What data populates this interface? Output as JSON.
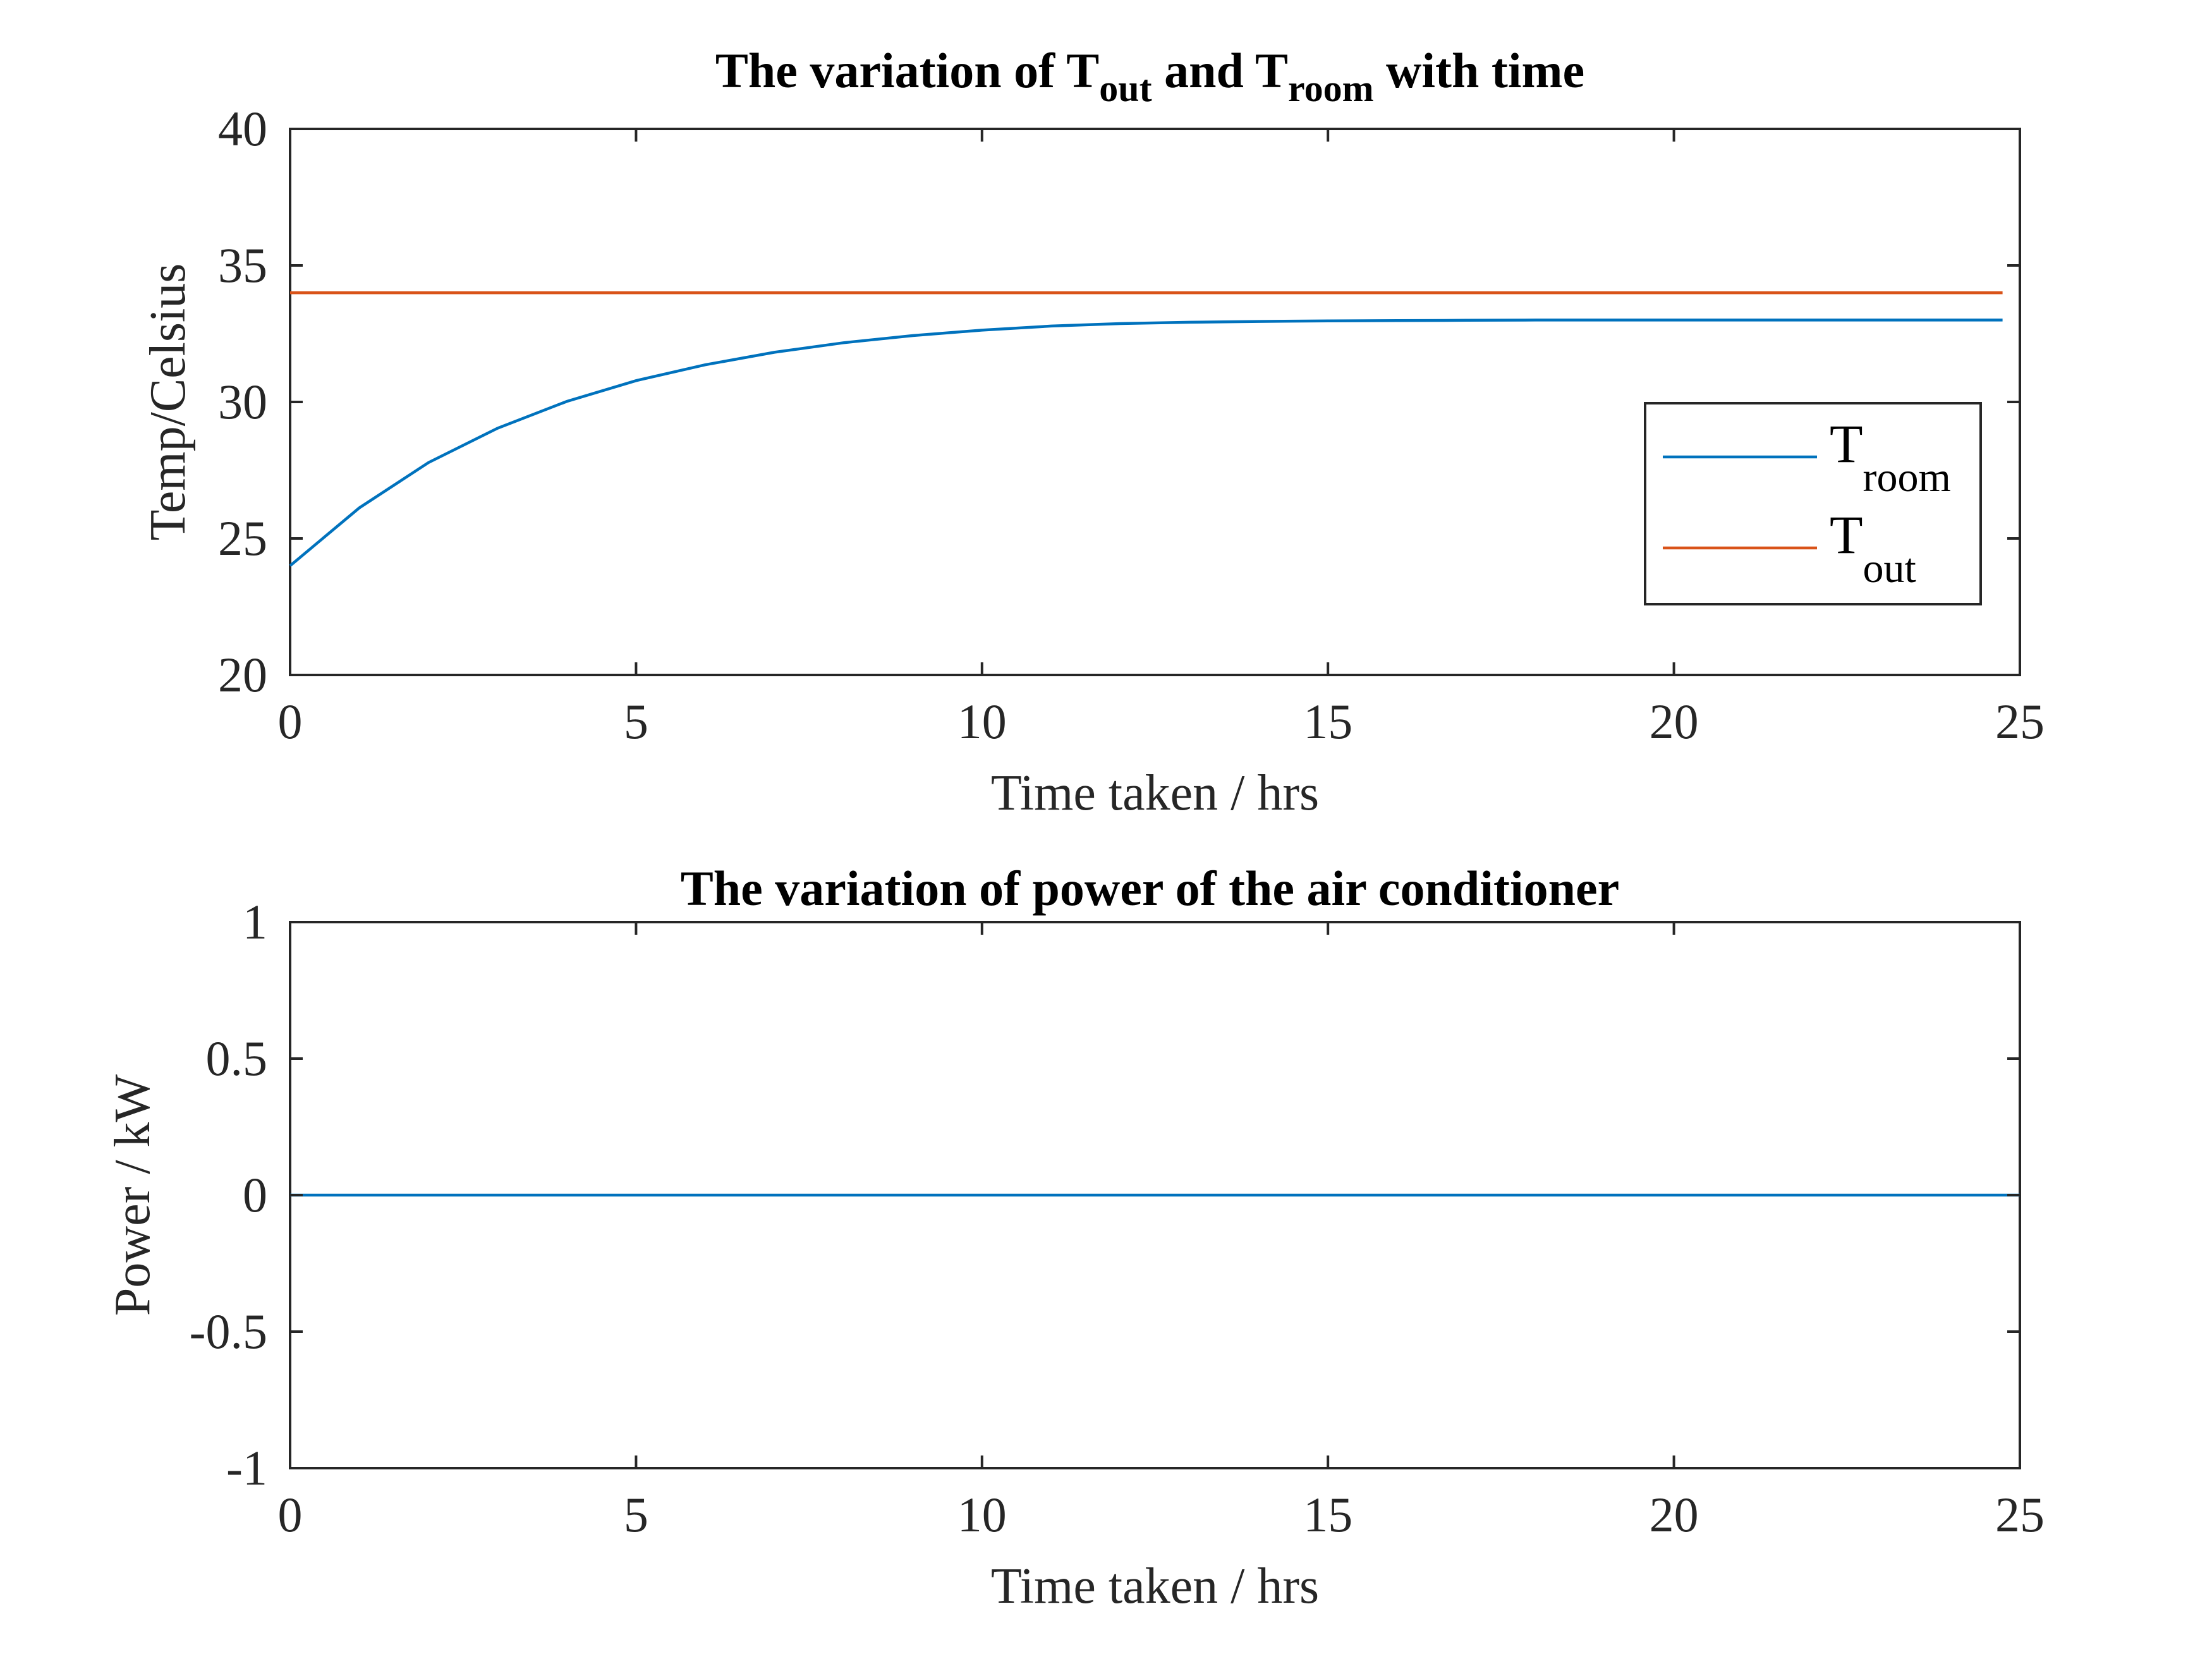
{
  "chart_data": [
    {
      "type": "line",
      "title": {
        "parts": [
          {
            "text": "The variation of T",
            "sub": false
          },
          {
            "text": "out",
            "sub": true
          },
          {
            "text": " and T",
            "sub": false
          },
          {
            "text": "room",
            "sub": true
          },
          {
            "text": " with time",
            "sub": false
          }
        ]
      },
      "xlabel": "Time taken /  hrs",
      "ylabel": "Temp/Celsius",
      "xlim": [
        0,
        25
      ],
      "ylim": [
        20,
        40
      ],
      "xticks": [
        "0",
        "5",
        "10",
        "15",
        "20",
        "25"
      ],
      "yticks": [
        "20",
        "25",
        "30",
        "35",
        "40"
      ],
      "grid": false,
      "legend_position": "right",
      "series": [
        {
          "name": {
            "base": "T",
            "sub": "room"
          },
          "color": "#0072BD",
          "x": [
            0,
            1,
            2,
            3,
            4,
            5,
            6,
            7,
            8,
            9,
            10,
            11,
            12,
            13,
            14,
            15,
            16,
            17,
            18,
            19,
            20,
            21,
            22,
            23,
            24,
            24.75
          ],
          "y": [
            24.0,
            26.12,
            27.78,
            29.04,
            30.02,
            30.78,
            31.36,
            31.82,
            32.17,
            32.43,
            32.63,
            32.78,
            32.87,
            32.92,
            32.95,
            32.97,
            32.98,
            32.99,
            33.0,
            33.0,
            33.0,
            33.0,
            33.0,
            33.0,
            33.0,
            33.0
          ]
        },
        {
          "name": {
            "base": "T",
            "sub": "out"
          },
          "color": "#D95319",
          "x": [
            0,
            24.75
          ],
          "y": [
            34,
            34
          ]
        }
      ]
    },
    {
      "type": "line",
      "title": {
        "parts": [
          {
            "text": "The variation of power of the air conditioner",
            "sub": false
          }
        ]
      },
      "xlabel": "Time taken /  hrs",
      "ylabel": "Power / kW",
      "xlim": [
        0,
        25
      ],
      "ylim": [
        -1,
        1
      ],
      "xticks": [
        "0",
        "5",
        "10",
        "15",
        "20",
        "25"
      ],
      "yticks": [
        "-1",
        "-0.5",
        "0",
        "0.5",
        "1"
      ],
      "grid": false,
      "series": [
        {
          "color": "#0072BD",
          "x": [
            0,
            25
          ],
          "y": [
            0,
            0
          ]
        }
      ]
    }
  ]
}
